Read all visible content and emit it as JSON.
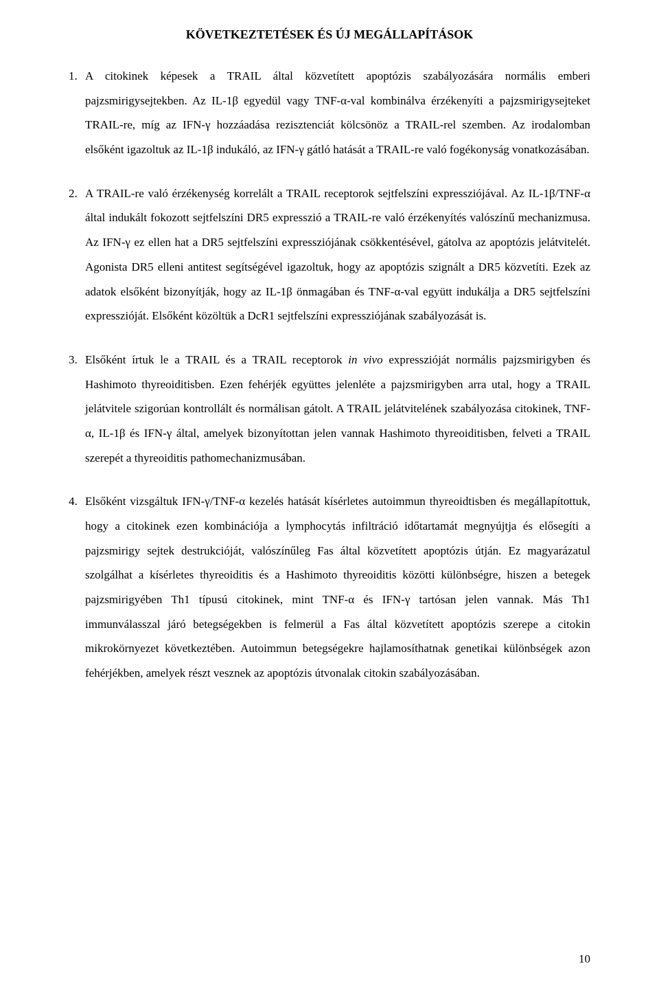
{
  "title": "KÖVETKEZTETÉSEK ÉS ÚJ MEGÁLLAPÍTÁSOK",
  "items": [
    {
      "marker": "1.",
      "paragraphs": [
        "A citokinek képesek a TRAIL által közvetített apoptózis szabályozására normális emberi pajzsmirigysejtekben. Az IL-1β egyedül vagy TNF-α-val kombinálva érzékenyíti a pajzsmirigysejteket TRAIL-re, míg az IFN-γ hozzáadása rezisztenciát kölcsönöz a TRAIL-rel szemben. Az irodalomban elsőként igazoltuk az IL-1β indukáló, az IFN-γ gátló hatását a TRAIL-re való fogékonyság vonatkozásában."
      ]
    },
    {
      "marker": "2.",
      "paragraphs": [
        "A TRAIL-re való érzékenység korrelált a TRAIL receptorok sejtfelszíni expressziójával. Az IL-1β/TNF-α által indukált fokozott sejtfelszíni DR5 expresszió a TRAIL-re való érzékenyítés valószínű mechanizmusa. Az IFN-γ ez ellen hat a DR5 sejtfelszíni expressziójának csökkentésével, gátolva az apoptózis jelátvitelét. Agonista DR5 elleni antitest segítségével igazoltuk, hogy az apoptózis szignált a DR5 közvetíti. Ezek az adatok elsőként bizonyítják, hogy az IL-1β önmagában és TNF-α-val együtt indukálja a DR5 sejtfelszíni expresszióját. Elsőként közöltük a DcR1 sejtfelszíni expressziójának szabályozását is."
      ]
    },
    {
      "marker": "3.",
      "paragraphs": [
        "Elsőként írtuk le a TRAIL és a TRAIL receptorok <i>in vivo</i> expresszióját normális pajzsmirigyben és Hashimoto thyreoiditisben. Ezen fehérjék együttes jelenléte a pajzsmirigyben arra utal, hogy a TRAIL jelátvitele szigorúan kontrollált és normálisan gátolt. A TRAIL jelátvitelének szabályozása citokinek, TNF-α, IL-1β és IFN-γ által, amelyek bizonyítottan jelen vannak Hashimoto thyreoiditisben, felveti a TRAIL szerepét a thyreoiditis pathomechanizmusában."
      ]
    },
    {
      "marker": "4.",
      "paragraphs": [
        "Elsőként vizsgáltuk IFN-γ/TNF-α kezelés hatását kísérletes autoimmun thyreoidtisben és megállapítottuk, hogy a citokinek ezen kombinációja a lymphocytás infiltráció időtartamát megnyújtja és elősegíti a pajzsmirigy sejtek destrukcióját, valószínűleg Fas által közvetített apoptózis útján. Ez magyarázatul szolgálhat a kísérletes thyreoiditis és a Hashimoto thyreoiditis közötti különbségre, hiszen a betegek pajzsmirigyében Th1 típusú citokinek, mint TNF-α és IFN-γ tartósan jelen vannak. Más Th1 immunválasszal járó betegségekben is felmerül a Fas által közvetített apoptózis szerepe a citokin mikrokörnyezet következtében. Autoimmun betegségekre hajlamosíthatnak genetikai különbségek azon fehérjékben, amelyek részt vesznek az apoptózis útvonalak citokin szabályozásában."
      ]
    }
  ],
  "page_number": "10"
}
